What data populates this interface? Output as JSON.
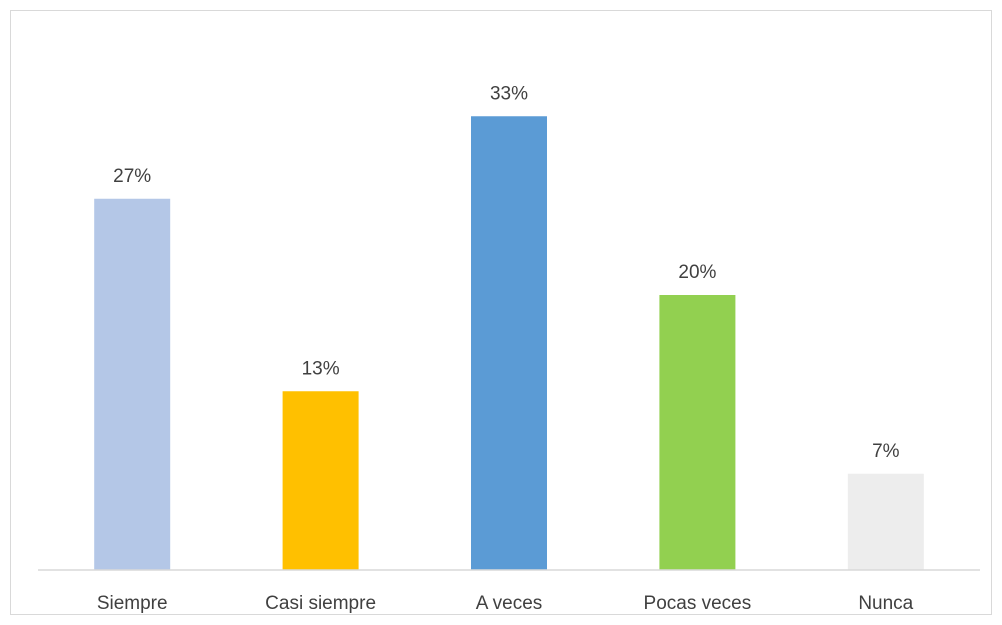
{
  "chart_data": {
    "type": "bar",
    "title": "",
    "xlabel": "",
    "ylabel": "",
    "categories": [
      "Siempre",
      "Casi siempre",
      "A veces",
      "Pocas veces",
      "Nunca"
    ],
    "values": [
      27,
      13,
      33,
      20,
      7
    ],
    "data_labels": [
      "27%",
      "13%",
      "33%",
      "20%",
      "7%"
    ],
    "colors": [
      "#b4c7e7",
      "#ffc000",
      "#5b9bd5",
      "#92d050",
      "#ededed"
    ],
    "ylim": [
      0,
      40
    ],
    "unit": "%",
    "grid": false,
    "legend": "none",
    "axis_line_color": "#d9d9d9"
  }
}
